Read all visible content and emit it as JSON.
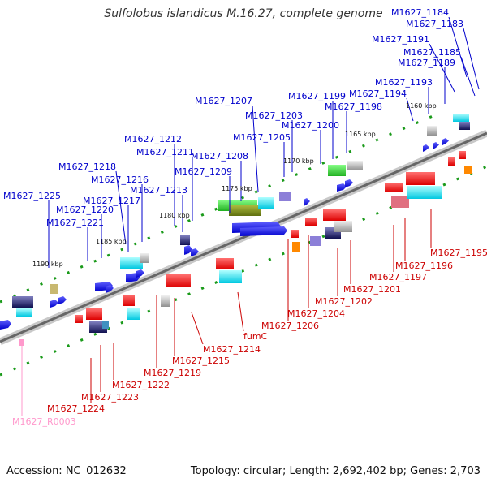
{
  "title": "Sulfolobus islandicus M.16.27, complete genome",
  "footer": {
    "accession": "Accession: NC_012632",
    "summary": "Topology: circular; Length: 2,692,402 bp; Genes: 2,703"
  },
  "colors": {
    "plus_label": "#0000cc",
    "minus_label": "#cc0000",
    "rna_label": "#ff99cc",
    "backbone": "#888888"
  },
  "scale_labels": [
    "1160 kbp",
    "1165 kbp",
    "1170 kbp",
    "1175 kbp",
    "1180 kbp",
    "1185 kbp",
    "1190 kbp"
  ],
  "genes_plus": [
    "M1627_1184",
    "M1627_1183",
    "M1627_1191",
    "M1627_1185",
    "M1627_1189",
    "M1627_1193",
    "M1627_1194",
    "M1627_1199",
    "M1627_1198",
    "M1627_1200",
    "M1627_1207",
    "M1627_1203",
    "M1627_1205",
    "M1627_1212",
    "M1627_1211",
    "M1627_1208",
    "M1627_1209",
    "M1627_1218",
    "M1627_1216",
    "M1627_1213",
    "M1627_1217",
    "M1627_1225",
    "M1627_1220",
    "M1627_1221"
  ],
  "genes_minus": [
    "M1627_1195",
    "M1627_1196",
    "M1627_1197",
    "M1627_1201",
    "M1627_1202",
    "M1627_1204",
    "M1627_1206",
    "fumC",
    "M1627_1214",
    "M1627_1215",
    "M1627_1219",
    "M1627_1222",
    "M1627_1223",
    "M1627_1224"
  ],
  "genes_rna": [
    "M1627_R0003"
  ]
}
